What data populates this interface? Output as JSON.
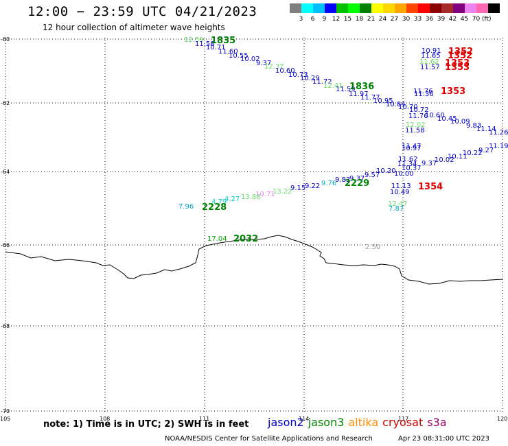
{
  "header": {
    "title": "12:00 − 23:59 UTC 04/21/2023",
    "subtitle": "12 hour collection of altimeter wave heights"
  },
  "scale": {
    "unit": "(ft)",
    "colors": [
      "#808080",
      "#00ffff",
      "#00bfff",
      "#0000ff",
      "#00c000",
      "#00ff00",
      "#008000",
      "#ffff00",
      "#ffd700",
      "#ffa500",
      "#ff4500",
      "#ff0000",
      "#8b0000",
      "#a52a2a",
      "#800080",
      "#ee82ee",
      "#ff69b4",
      "#000000"
    ],
    "labels": [
      "3",
      "6",
      "9",
      "12",
      "15",
      "18",
      "21",
      "24",
      "27",
      "30",
      "33",
      "36",
      "39",
      "42",
      "45",
      "70"
    ]
  },
  "axes": {
    "lon_labels": [
      "105",
      "108",
      "111",
      "114",
      "117",
      "120"
    ],
    "lat_labels": [
      "-60",
      "-62",
      "-64",
      "-66",
      "-68",
      "-70"
    ]
  },
  "map_labels": {
    "contour": "2.50"
  },
  "passes": [
    {
      "label": "1835",
      "color": "#008000"
    },
    {
      "label": "1836",
      "color": "#008000"
    },
    {
      "label": "2228",
      "color": "#008000"
    },
    {
      "label": "2229",
      "color": "#008000"
    },
    {
      "label": "2032",
      "color": "#008000"
    },
    {
      "label": "1352",
      "color": "#dd0000"
    },
    {
      "label": "1352",
      "color": "#dd0000"
    },
    {
      "label": "1353",
      "color": "#dd0000"
    },
    {
      "label": "1353",
      "color": "#dd0000"
    },
    {
      "label": "1353",
      "color": "#dd0000"
    },
    {
      "label": "1354",
      "color": "#dd0000"
    }
  ],
  "values": [
    {
      "t": "12.59",
      "c": "#66dd66"
    },
    {
      "t": "11.58",
      "c": "#0000cc"
    },
    {
      "t": "10.71",
      "c": "#0000cc"
    },
    {
      "t": "11.60",
      "c": "#0000cc"
    },
    {
      "t": "10.55",
      "c": "#0000cc"
    },
    {
      "t": "10.02",
      "c": "#0000cc"
    },
    {
      "t": "9.37",
      "c": "#0000cc"
    },
    {
      "t": "12.37",
      "c": "#66dd66"
    },
    {
      "t": "10.60",
      "c": "#0000cc"
    },
    {
      "t": "10.73",
      "c": "#0000cc"
    },
    {
      "t": "10.29",
      "c": "#0000cc"
    },
    {
      "t": "11.72",
      "c": "#0000cc"
    },
    {
      "t": "12.41",
      "c": "#66dd66"
    },
    {
      "t": "11.59",
      "c": "#0000cc"
    },
    {
      "t": "11.97",
      "c": "#0000cc"
    },
    {
      "t": "11.77",
      "c": "#0000cc"
    },
    {
      "t": "10.95",
      "c": "#0000cc"
    },
    {
      "t": "10.84",
      "c": "#0000cc"
    },
    {
      "t": "10.70",
      "c": "#0000cc"
    },
    {
      "t": "10.72",
      "c": "#0000cc"
    },
    {
      "t": "11.76",
      "c": "#0000cc"
    },
    {
      "t": "10.60",
      "c": "#0000cc"
    },
    {
      "t": "10.45",
      "c": "#0000cc"
    },
    {
      "t": "10.09",
      "c": "#0000cc"
    },
    {
      "t": "9.83",
      "c": "#0000cc"
    },
    {
      "t": "11.14",
      "c": "#0000cc"
    },
    {
      "t": "11.26",
      "c": "#0000cc"
    },
    {
      "t": "10.91",
      "c": "#0000cc"
    },
    {
      "t": "11.65",
      "c": "#0000cc"
    },
    {
      "t": "11.62",
      "c": "#66dd66"
    },
    {
      "t": "11.57",
      "c": "#0000cc"
    },
    {
      "t": "11.76",
      "c": "#0000cc"
    },
    {
      "t": "11.36",
      "c": "#0000cc"
    },
    {
      "t": "12.02",
      "c": "#66dd66"
    },
    {
      "t": "11.58",
      "c": "#0000cc"
    },
    {
      "t": "11.47",
      "c": "#0000cc"
    },
    {
      "t": "10.97",
      "c": "#0000cc"
    },
    {
      "t": "11.62",
      "c": "#0000cc"
    },
    {
      "t": "11.34",
      "c": "#0000cc"
    },
    {
      "t": "10.37",
      "c": "#0000cc"
    },
    {
      "t": "10.00",
      "c": "#0000cc"
    },
    {
      "t": "11.13",
      "c": "#0000cc"
    },
    {
      "t": "10.49",
      "c": "#0000cc"
    },
    {
      "t": "12.47",
      "c": "#66dd66"
    },
    {
      "t": "7.87",
      "c": "#00aacc"
    },
    {
      "t": "9.37",
      "c": "#0000cc"
    },
    {
      "t": "10.02",
      "c": "#0000cc"
    },
    {
      "t": "10.11",
      "c": "#0000cc"
    },
    {
      "t": "10.22",
      "c": "#0000cc"
    },
    {
      "t": "9.27",
      "c": "#0000cc"
    },
    {
      "t": "11.19",
      "c": "#0000cc"
    },
    {
      "t": "10.20",
      "c": "#0000cc"
    },
    {
      "t": "9.57",
      "c": "#0000cc"
    },
    {
      "t": "9.37",
      "c": "#0000cc"
    },
    {
      "t": "9.83",
      "c": "#0000cc"
    },
    {
      "t": "9.76",
      "c": "#00aacc"
    },
    {
      "t": "9.22",
      "c": "#0000cc"
    },
    {
      "t": "9.15",
      "c": "#0000cc"
    },
    {
      "t": "13.22",
      "c": "#66dd66"
    },
    {
      "t": "10.71",
      "c": "#ee82ee"
    },
    {
      "t": "13.88",
      "c": "#66dd66"
    },
    {
      "t": "4.27",
      "c": "#00cccc"
    },
    {
      "t": "4.79",
      "c": "#00cccc"
    },
    {
      "t": "7.96",
      "c": "#00aacc"
    },
    {
      "t": "17.04",
      "c": "#00aa00"
    }
  ],
  "footer": {
    "note": "note:  1) Time is in UTC;  2) SWH is in feet",
    "satellites": [
      {
        "name": "jason2",
        "color": "#0000cc"
      },
      {
        "name": "jason3",
        "color": "#008000"
      },
      {
        "name": "altika",
        "color": "#ff8c00"
      },
      {
        "name": "cryosat",
        "color": "#cc0000"
      },
      {
        "name": "s3a",
        "color": "#990066"
      }
    ],
    "credit": "NOAA/NESDIS Center for Satellite Applications and Research",
    "timestamp": "Apr 23 08:31:00 UTC 2023"
  }
}
